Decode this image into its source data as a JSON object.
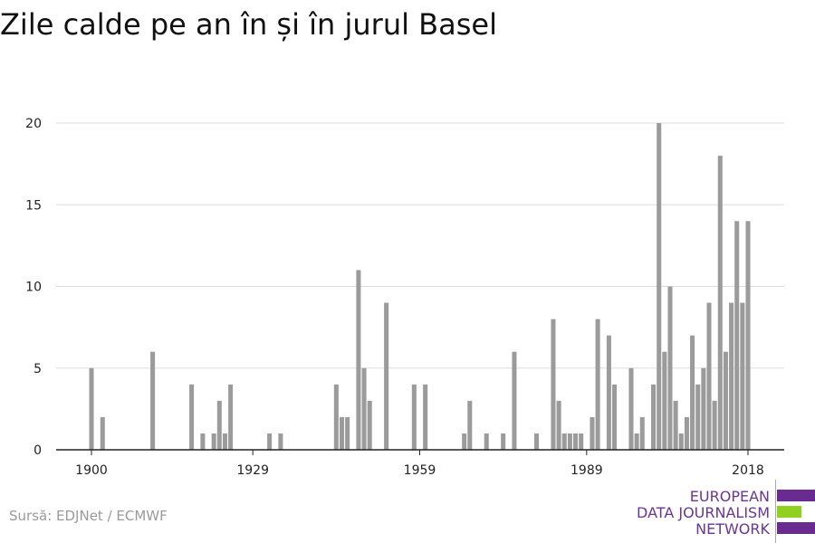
{
  "chart_data": {
    "type": "bar",
    "title": "Zile calde pe an în și în jurul Basel",
    "xlabel": "",
    "ylabel": "",
    "ylim": [
      0,
      20
    ],
    "xlim": [
      1900,
      2018
    ],
    "yticks": [
      0,
      5,
      10,
      15,
      20
    ],
    "xticks": [
      1900,
      1929,
      1959,
      1989,
      2018
    ],
    "grid": true,
    "bar_color": "#9b9b9b",
    "x": [
      1900,
      1902,
      1911,
      1918,
      1920,
      1922,
      1923,
      1924,
      1925,
      1932,
      1934,
      1944,
      1945,
      1946,
      1948,
      1949,
      1950,
      1953,
      1958,
      1960,
      1967,
      1968,
      1971,
      1974,
      1976,
      1980,
      1983,
      1984,
      1985,
      1986,
      1987,
      1988,
      1990,
      1991,
      1993,
      1994,
      1997,
      1998,
      1999,
      2001,
      2002,
      2003,
      2004,
      2005,
      2006,
      2007,
      2008,
      2009,
      2010,
      2011,
      2012,
      2013,
      2014,
      2015,
      2016,
      2017,
      2018
    ],
    "values": [
      5,
      2,
      6,
      4,
      1,
      1,
      3,
      1,
      4,
      1,
      1,
      4,
      2,
      2,
      11,
      5,
      3,
      9,
      4,
      4,
      1,
      3,
      1,
      1,
      6,
      1,
      8,
      3,
      1,
      1,
      1,
      1,
      2,
      8,
      7,
      4,
      5,
      1,
      2,
      4,
      20,
      6,
      10,
      3,
      1,
      2,
      7,
      4,
      5,
      9,
      3,
      18,
      6,
      9,
      14,
      9,
      14
    ]
  },
  "source": "Sursă: EDJNet / ECMWF",
  "logo": {
    "line1": "EUROPEAN",
    "line2": "DATA JOURNALISM",
    "line3": "NETWORK",
    "purple": "#6a2b91",
    "green": "#8fd11e"
  }
}
